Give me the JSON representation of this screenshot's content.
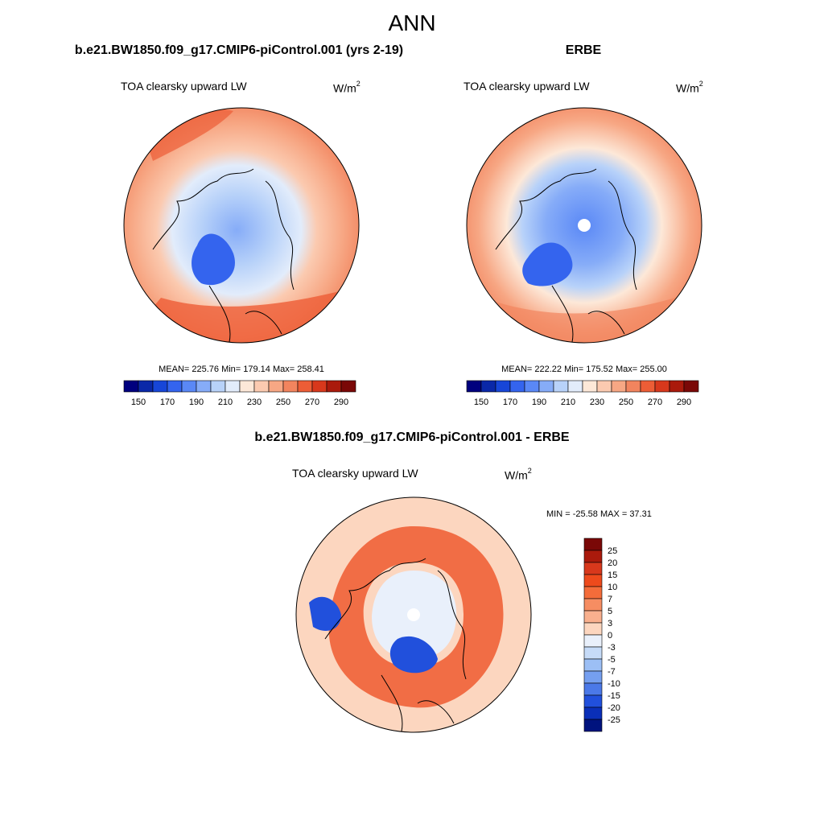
{
  "page": {
    "title": "ANN",
    "colors": {
      "line": "#000000",
      "missing": "#ffffff"
    }
  },
  "panels": [
    {
      "id": "model",
      "header": "b.e21.BW1850.f09_g17.CMIP6-piControl.001 (yrs 2-19)",
      "variable": "TOA clearsky upward LW",
      "units_base": "W/m",
      "units_exp": "2",
      "stats": "MEAN= 225.76  Min= 179.14  Max= 258.41"
    },
    {
      "id": "obs",
      "header": "ERBE",
      "variable": "TOA clearsky upward LW",
      "units_base": "W/m",
      "units_exp": "2",
      "stats": "MEAN= 222.22  Min= 175.52  Max= 255.00"
    },
    {
      "id": "diff",
      "header": "b.e21.BW1850.f09_g17.CMIP6-piControl.001 - ERBE",
      "variable": "TOA clearsky upward LW",
      "units_base": "W/m",
      "units_exp": "2",
      "stats": "MIN = -25.58 MAX =  37.31"
    }
  ],
  "chart_data": [
    {
      "type": "heatmap",
      "projection": "north-polar-stereographic",
      "title": "TOA clearsky upward LW",
      "units": "W/m2",
      "summary": {
        "mean": 225.76,
        "min": 179.14,
        "max": 258.41
      },
      "colorbar": {
        "orientation": "horizontal",
        "tick_labels": [
          "150",
          "170",
          "190",
          "210",
          "230",
          "250",
          "270",
          "290"
        ],
        "colors": [
          "#00007e",
          "#0a28a8",
          "#1746d8",
          "#3464ee",
          "#5a88f6",
          "#86acf8",
          "#b8d2f9",
          "#e2ecfb",
          "#fde8d8",
          "#fbcab0",
          "#f7a784",
          "#f2845e",
          "#ed5d36",
          "#d8381c",
          "#aa1a0c",
          "#7a0807"
        ]
      }
    },
    {
      "type": "heatmap",
      "projection": "north-polar-stereographic",
      "title": "TOA clearsky upward LW",
      "units": "W/m2",
      "summary": {
        "mean": 222.22,
        "min": 175.52,
        "max": 255.0
      },
      "colorbar": {
        "orientation": "horizontal",
        "tick_labels": [
          "150",
          "170",
          "190",
          "210",
          "230",
          "250",
          "270",
          "290"
        ],
        "colors": [
          "#00007e",
          "#0a28a8",
          "#1746d8",
          "#3464ee",
          "#5a88f6",
          "#86acf8",
          "#b8d2f9",
          "#e2ecfb",
          "#fde8d8",
          "#fbcab0",
          "#f7a784",
          "#f2845e",
          "#ed5d36",
          "#d8381c",
          "#aa1a0c",
          "#7a0807"
        ]
      }
    },
    {
      "type": "heatmap",
      "projection": "north-polar-stereographic",
      "title": "TOA clearsky upward LW",
      "units": "W/m2",
      "summary": {
        "min": -25.58,
        "max": 37.31
      },
      "colorbar": {
        "orientation": "vertical",
        "tick_labels": [
          "25",
          "20",
          "15",
          "10",
          "7",
          "5",
          "3",
          "0",
          "-3",
          "-5",
          "-7",
          "-10",
          "-15",
          "-20",
          "-25"
        ],
        "colors": [
          "#7a0807",
          "#aa1a0c",
          "#d8381c",
          "#ee4a1c",
          "#f46c3a",
          "#f68d62",
          "#f9b08e",
          "#fcd6bf",
          "#e9f0fb",
          "#c6dbf8",
          "#9cbff5",
          "#759ff0",
          "#4b79e8",
          "#2150dc",
          "#0a2fb8",
          "#00137e"
        ]
      }
    }
  ]
}
